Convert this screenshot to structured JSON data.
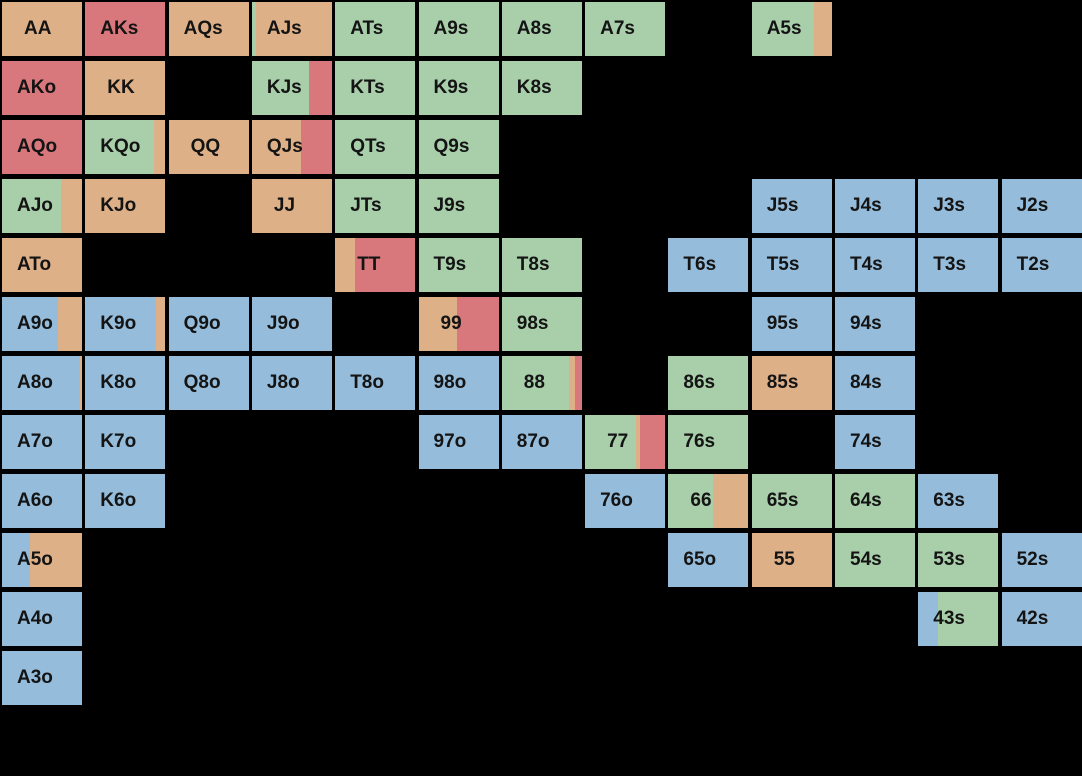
{
  "colors": {
    "green": "#a8ceaa",
    "orange": "#deb088",
    "red": "#d9787c",
    "blue": "#95bcda",
    "background": "#000000"
  },
  "hands": [
    {
      "label": "AA",
      "row": 0,
      "col": 0,
      "mix": [
        [
          "orange",
          1
        ]
      ]
    },
    {
      "label": "AKs",
      "row": 0,
      "col": 1,
      "mix": [
        [
          "red",
          1
        ]
      ]
    },
    {
      "label": "AQs",
      "row": 0,
      "col": 2,
      "mix": [
        [
          "orange",
          1
        ]
      ]
    },
    {
      "label": "AJs",
      "row": 0,
      "col": 3,
      "mix": [
        [
          "green",
          0.05
        ],
        [
          "orange",
          0.95
        ]
      ]
    },
    {
      "label": "ATs",
      "row": 0,
      "col": 4,
      "mix": [
        [
          "green",
          1
        ]
      ]
    },
    {
      "label": "A9s",
      "row": 0,
      "col": 5,
      "mix": [
        [
          "green",
          1
        ]
      ]
    },
    {
      "label": "A8s",
      "row": 0,
      "col": 6,
      "mix": [
        [
          "green",
          1
        ]
      ]
    },
    {
      "label": "A7s",
      "row": 0,
      "col": 7,
      "mix": [
        [
          "green",
          1
        ]
      ]
    },
    {
      "label": "A5s",
      "row": 0,
      "col": 9,
      "mix": [
        [
          "green",
          0.78
        ],
        [
          "orange",
          0.22
        ]
      ]
    },
    {
      "label": "AKo",
      "row": 1,
      "col": 0,
      "mix": [
        [
          "red",
          1
        ]
      ]
    },
    {
      "label": "KK",
      "row": 1,
      "col": 1,
      "mix": [
        [
          "orange",
          1
        ]
      ]
    },
    {
      "label": "KJs",
      "row": 1,
      "col": 3,
      "mix": [
        [
          "green",
          0.72
        ],
        [
          "red",
          0.28
        ]
      ]
    },
    {
      "label": "KTs",
      "row": 1,
      "col": 4,
      "mix": [
        [
          "green",
          1
        ]
      ]
    },
    {
      "label": "K9s",
      "row": 1,
      "col": 5,
      "mix": [
        [
          "green",
          1
        ]
      ]
    },
    {
      "label": "K8s",
      "row": 1,
      "col": 6,
      "mix": [
        [
          "green",
          1
        ]
      ]
    },
    {
      "label": "AQo",
      "row": 2,
      "col": 0,
      "mix": [
        [
          "red",
          1
        ]
      ]
    },
    {
      "label": "KQo",
      "row": 2,
      "col": 1,
      "mix": [
        [
          "green",
          0.86
        ],
        [
          "orange",
          0.14
        ]
      ]
    },
    {
      "label": "QQ",
      "row": 2,
      "col": 2,
      "mix": [
        [
          "orange",
          1
        ]
      ]
    },
    {
      "label": "QJs",
      "row": 2,
      "col": 3,
      "mix": [
        [
          "orange",
          0.62
        ],
        [
          "red",
          0.38
        ]
      ]
    },
    {
      "label": "QTs",
      "row": 2,
      "col": 4,
      "mix": [
        [
          "green",
          1
        ]
      ]
    },
    {
      "label": "Q9s",
      "row": 2,
      "col": 5,
      "mix": [
        [
          "green",
          1
        ]
      ]
    },
    {
      "label": "AJo",
      "row": 3,
      "col": 0,
      "mix": [
        [
          "green",
          0.74
        ],
        [
          "orange",
          0.26
        ]
      ]
    },
    {
      "label": "KJo",
      "row": 3,
      "col": 1,
      "mix": [
        [
          "orange",
          1
        ]
      ]
    },
    {
      "label": "JJ",
      "row": 3,
      "col": 3,
      "mix": [
        [
          "orange",
          1
        ]
      ]
    },
    {
      "label": "JTs",
      "row": 3,
      "col": 4,
      "mix": [
        [
          "green",
          1
        ]
      ]
    },
    {
      "label": "J9s",
      "row": 3,
      "col": 5,
      "mix": [
        [
          "green",
          1
        ]
      ]
    },
    {
      "label": "J5s",
      "row": 3,
      "col": 9,
      "mix": [
        [
          "blue",
          1
        ]
      ]
    },
    {
      "label": "J4s",
      "row": 3,
      "col": 10,
      "mix": [
        [
          "blue",
          1
        ]
      ]
    },
    {
      "label": "J3s",
      "row": 3,
      "col": 11,
      "mix": [
        [
          "blue",
          1
        ]
      ]
    },
    {
      "label": "J2s",
      "row": 3,
      "col": 12,
      "mix": [
        [
          "blue",
          1
        ]
      ]
    },
    {
      "label": "ATo",
      "row": 4,
      "col": 0,
      "mix": [
        [
          "orange",
          1
        ]
      ]
    },
    {
      "label": "TT",
      "row": 4,
      "col": 4,
      "mix": [
        [
          "orange",
          0.25
        ],
        [
          "red",
          0.75
        ]
      ]
    },
    {
      "label": "T9s",
      "row": 4,
      "col": 5,
      "mix": [
        [
          "green",
          1
        ]
      ]
    },
    {
      "label": "T8s",
      "row": 4,
      "col": 6,
      "mix": [
        [
          "green",
          1
        ]
      ]
    },
    {
      "label": "T6s",
      "row": 4,
      "col": 8,
      "mix": [
        [
          "blue",
          1
        ]
      ]
    },
    {
      "label": "T5s",
      "row": 4,
      "col": 9,
      "mix": [
        [
          "blue",
          1
        ]
      ]
    },
    {
      "label": "T4s",
      "row": 4,
      "col": 10,
      "mix": [
        [
          "blue",
          1
        ]
      ]
    },
    {
      "label": "T3s",
      "row": 4,
      "col": 11,
      "mix": [
        [
          "blue",
          1
        ]
      ]
    },
    {
      "label": "T2s",
      "row": 4,
      "col": 12,
      "mix": [
        [
          "blue",
          1
        ]
      ]
    },
    {
      "label": "A9o",
      "row": 5,
      "col": 0,
      "mix": [
        [
          "blue",
          0.7
        ],
        [
          "orange",
          0.3
        ]
      ]
    },
    {
      "label": "K9o",
      "row": 5,
      "col": 1,
      "mix": [
        [
          "blue",
          0.88
        ],
        [
          "orange",
          0.12
        ]
      ]
    },
    {
      "label": "Q9o",
      "row": 5,
      "col": 2,
      "mix": [
        [
          "blue",
          1
        ]
      ]
    },
    {
      "label": "J9o",
      "row": 5,
      "col": 3,
      "mix": [
        [
          "blue",
          1
        ]
      ]
    },
    {
      "label": "99",
      "row": 5,
      "col": 5,
      "mix": [
        [
          "orange",
          0.48
        ],
        [
          "red",
          0.52
        ]
      ]
    },
    {
      "label": "98s",
      "row": 5,
      "col": 6,
      "mix": [
        [
          "green",
          1
        ]
      ]
    },
    {
      "label": "95s",
      "row": 5,
      "col": 9,
      "mix": [
        [
          "blue",
          1
        ]
      ]
    },
    {
      "label": "94s",
      "row": 5,
      "col": 10,
      "mix": [
        [
          "blue",
          1
        ]
      ]
    },
    {
      "label": "A8o",
      "row": 6,
      "col": 0,
      "mix": [
        [
          "blue",
          0.97
        ],
        [
          "orange",
          0.03
        ]
      ]
    },
    {
      "label": "K8o",
      "row": 6,
      "col": 1,
      "mix": [
        [
          "blue",
          1
        ]
      ]
    },
    {
      "label": "Q8o",
      "row": 6,
      "col": 2,
      "mix": [
        [
          "blue",
          1
        ]
      ]
    },
    {
      "label": "J8o",
      "row": 6,
      "col": 3,
      "mix": [
        [
          "blue",
          1
        ]
      ]
    },
    {
      "label": "T8o",
      "row": 6,
      "col": 4,
      "mix": [
        [
          "blue",
          1
        ]
      ]
    },
    {
      "label": "98o",
      "row": 6,
      "col": 5,
      "mix": [
        [
          "blue",
          1
        ]
      ]
    },
    {
      "label": "88",
      "row": 6,
      "col": 6,
      "mix": [
        [
          "green",
          0.84
        ],
        [
          "orange",
          0.08
        ],
        [
          "red",
          0.08
        ]
      ]
    },
    {
      "label": "86s",
      "row": 6,
      "col": 8,
      "mix": [
        [
          "green",
          1
        ]
      ]
    },
    {
      "label": "85s",
      "row": 6,
      "col": 9,
      "mix": [
        [
          "orange",
          1
        ]
      ]
    },
    {
      "label": "84s",
      "row": 6,
      "col": 10,
      "mix": [
        [
          "blue",
          1
        ]
      ]
    },
    {
      "label": "A7o",
      "row": 7,
      "col": 0,
      "mix": [
        [
          "blue",
          1
        ]
      ]
    },
    {
      "label": "K7o",
      "row": 7,
      "col": 1,
      "mix": [
        [
          "blue",
          1
        ]
      ]
    },
    {
      "label": "97o",
      "row": 7,
      "col": 5,
      "mix": [
        [
          "blue",
          1
        ]
      ]
    },
    {
      "label": "87o",
      "row": 7,
      "col": 6,
      "mix": [
        [
          "blue",
          1
        ]
      ]
    },
    {
      "label": "77",
      "row": 7,
      "col": 7,
      "mix": [
        [
          "green",
          0.64
        ],
        [
          "orange",
          0.05
        ],
        [
          "red",
          0.31
        ]
      ]
    },
    {
      "label": "76s",
      "row": 7,
      "col": 8,
      "mix": [
        [
          "green",
          1
        ]
      ]
    },
    {
      "label": "74s",
      "row": 7,
      "col": 10,
      "mix": [
        [
          "blue",
          1
        ]
      ]
    },
    {
      "label": "A6o",
      "row": 8,
      "col": 0,
      "mix": [
        [
          "blue",
          1
        ]
      ]
    },
    {
      "label": "K6o",
      "row": 8,
      "col": 1,
      "mix": [
        [
          "blue",
          1
        ]
      ]
    },
    {
      "label": "76o",
      "row": 8,
      "col": 7,
      "mix": [
        [
          "blue",
          1
        ]
      ]
    },
    {
      "label": "66",
      "row": 8,
      "col": 8,
      "mix": [
        [
          "green",
          0.56
        ],
        [
          "orange",
          0.44
        ]
      ]
    },
    {
      "label": "65s",
      "row": 8,
      "col": 9,
      "mix": [
        [
          "green",
          1
        ]
      ]
    },
    {
      "label": "64s",
      "row": 8,
      "col": 10,
      "mix": [
        [
          "green",
          1
        ]
      ]
    },
    {
      "label": "63s",
      "row": 8,
      "col": 11,
      "mix": [
        [
          "blue",
          1
        ]
      ]
    },
    {
      "label": "A5o",
      "row": 9,
      "col": 0,
      "mix": [
        [
          "blue",
          0.35
        ],
        [
          "orange",
          0.65
        ]
      ]
    },
    {
      "label": "65o",
      "row": 9,
      "col": 8,
      "mix": [
        [
          "blue",
          1
        ]
      ]
    },
    {
      "label": "55",
      "row": 9,
      "col": 9,
      "mix": [
        [
          "orange",
          1
        ]
      ]
    },
    {
      "label": "54s",
      "row": 9,
      "col": 10,
      "mix": [
        [
          "green",
          1
        ]
      ]
    },
    {
      "label": "53s",
      "row": 9,
      "col": 11,
      "mix": [
        [
          "green",
          1
        ]
      ]
    },
    {
      "label": "52s",
      "row": 9,
      "col": 12,
      "mix": [
        [
          "blue",
          1
        ]
      ]
    },
    {
      "label": "A4o",
      "row": 10,
      "col": 0,
      "mix": [
        [
          "blue",
          1
        ]
      ]
    },
    {
      "label": "43s",
      "row": 10,
      "col": 11,
      "mix": [
        [
          "blue",
          0.25
        ],
        [
          "green",
          0.75
        ]
      ]
    },
    {
      "label": "42s",
      "row": 10,
      "col": 12,
      "mix": [
        [
          "blue",
          1
        ]
      ]
    },
    {
      "label": "A3o",
      "row": 11,
      "col": 0,
      "mix": [
        [
          "blue",
          1
        ]
      ]
    }
  ]
}
